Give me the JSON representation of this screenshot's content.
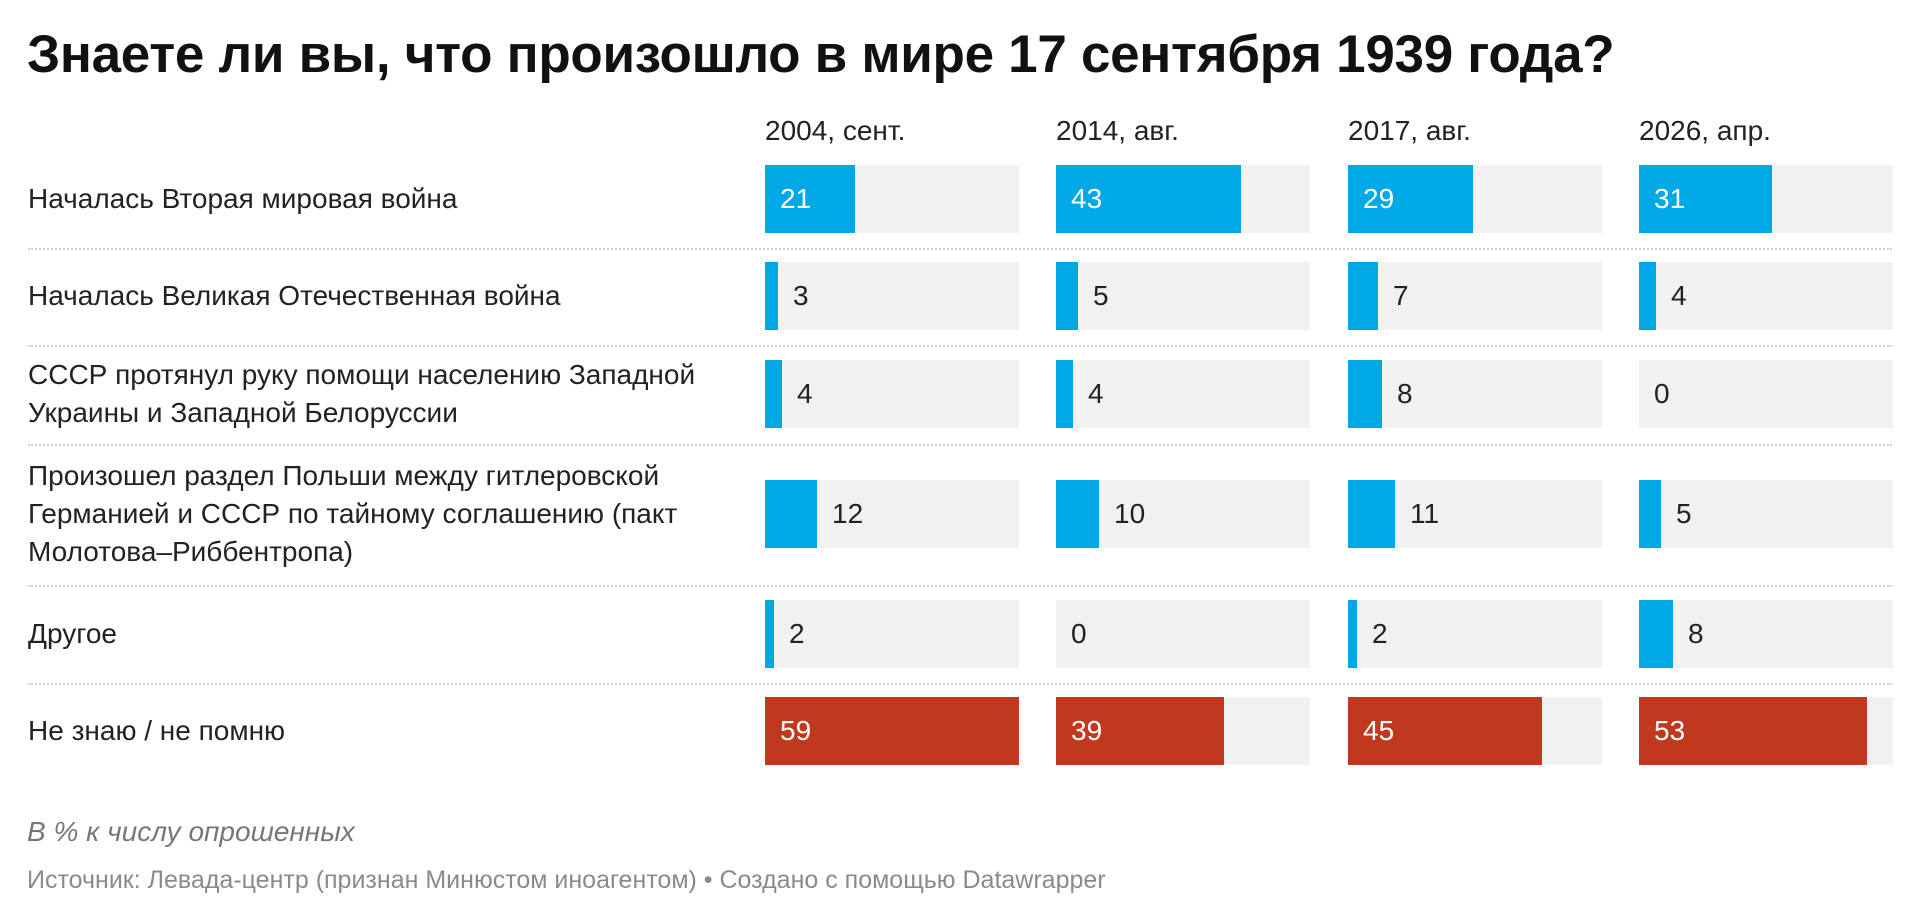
{
  "title": "Знаете ли вы, что произошло в мире 17 сентября 1939 года?",
  "notes": "В % к числу опрошенных",
  "source": "Источник: Левада-центр (признан Минюстом иноагентом) • Создано с помощью Datawrapper",
  "colors": {
    "blue": "#00a8e6",
    "red": "#c0391f",
    "track": "#f1f1f1"
  },
  "chart_data": {
    "type": "bar",
    "title": "Знаете ли вы, что произошло в мире 17 сентября 1939 года?",
    "columns": [
      "2004, сент.",
      "2014, авг.",
      "2017, авг.",
      "2026, апр."
    ],
    "xlim": [
      0,
      59
    ],
    "rows": [
      {
        "label": "Началась Вторая мировая война",
        "values": [
          21,
          43,
          29,
          31
        ],
        "color": "blue"
      },
      {
        "label": "Началась Великая Отечественная война",
        "values": [
          3,
          5,
          7,
          4
        ],
        "color": "blue"
      },
      {
        "label": "СССР протянул руку помощи населению Западной Украины и Западной Белоруссии",
        "values": [
          4,
          4,
          8,
          0
        ],
        "color": "blue"
      },
      {
        "label": "Произошел раздел Польши между гитлеровской Германией и СССР по тайному соглашению (пакт Молотова–Риббентропа)",
        "values": [
          12,
          10,
          11,
          5
        ],
        "color": "blue"
      },
      {
        "label": "Другое",
        "values": [
          2,
          0,
          2,
          8
        ],
        "color": "blue"
      },
      {
        "label": "Не знаю / не помню",
        "values": [
          59,
          39,
          45,
          53
        ],
        "color": "red"
      }
    ]
  }
}
